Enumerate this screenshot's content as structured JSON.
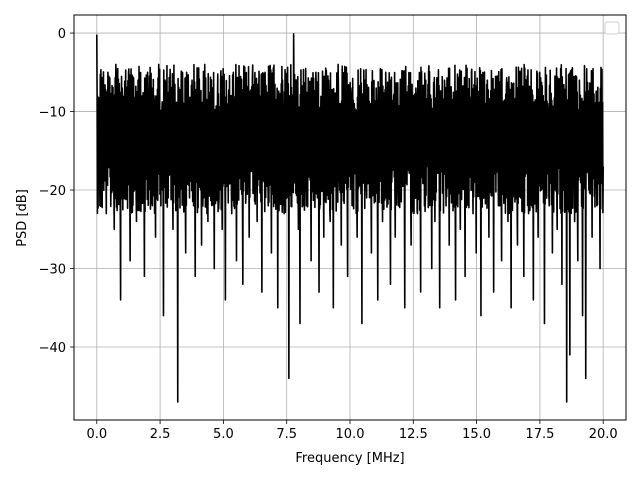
{
  "chart_data": {
    "type": "line",
    "title": "",
    "xlabel": "Frequency [MHz]",
    "ylabel": "PSD [dB]",
    "xlim": [
      -0.9,
      20.9
    ],
    "ylim": [
      -49.3,
      2.3
    ],
    "x_ticks": [
      0.0,
      2.5,
      5.0,
      7.5,
      10.0,
      12.5,
      15.0,
      17.5,
      20.0
    ],
    "x_tick_labels": [
      "0.0",
      "2.5",
      "5.0",
      "7.5",
      "10.0",
      "12.5",
      "15.0",
      "17.5",
      "20.0"
    ],
    "y_ticks": [
      0,
      -10,
      -20,
      -30,
      -40
    ],
    "y_tick_labels": [
      "0",
      "−10",
      "−20",
      "−30",
      "−40"
    ],
    "grid": true,
    "legend": "top-right (empty)",
    "series": [
      {
        "color": "#000000",
        "x_start": 0.0,
        "x_end": 20.0,
        "baseline_db": -13,
        "values": [
          -0.2,
          -14,
          -22,
          -6,
          -17,
          -11,
          -23,
          -5,
          -13,
          -19,
          -9,
          -25,
          -4,
          -15,
          -12,
          -34,
          -7,
          -21,
          -10,
          -16,
          -5,
          -29,
          -12,
          -8,
          -18,
          -24,
          -6,
          -13,
          -20,
          -9,
          -31,
          -11,
          -5,
          -17,
          -14,
          -22,
          -8,
          -26,
          -12,
          -4,
          -19,
          -10,
          -36,
          -6,
          -15,
          -21,
          -9,
          -13,
          -25,
          -7,
          -18,
          -47,
          -11,
          -14,
          -5,
          -20,
          -28,
          -9,
          -16,
          -12,
          -6,
          -22,
          -31,
          -10,
          -15,
          -8,
          -27,
          -13,
          -4,
          -19,
          -24,
          -11,
          -17,
          -7,
          -30,
          -14,
          -9,
          -21,
          -6,
          -25,
          -12,
          -34,
          -16,
          -8,
          -13,
          -23,
          -5,
          -18,
          -29,
          -10,
          -15,
          -7,
          -32,
          -12,
          -20,
          -9,
          -26,
          -14,
          -6,
          -17,
          -11,
          -24,
          -8,
          -19,
          -33,
          -13,
          -5,
          -16,
          -22,
          -10,
          -28,
          -7,
          -15,
          -12,
          -35,
          -9,
          -18,
          -6,
          -23,
          -14,
          -11,
          -44,
          -20,
          -8,
          -0.1,
          -16,
          -13,
          -25,
          -37,
          -10,
          -19,
          -7,
          -22,
          -15,
          -12,
          -29,
          -9,
          -17,
          -5,
          -21,
          -33,
          -11,
          -14,
          -26,
          -8,
          -18,
          -6,
          -24,
          -13,
          -35,
          -10,
          -16,
          -4,
          -20,
          -27,
          -12,
          -15,
          -9,
          -31,
          -17,
          -7,
          -22,
          -14,
          -11,
          -26,
          -8,
          -19,
          -37,
          -13,
          -6,
          -21,
          -15,
          -10,
          -28,
          -12,
          -18,
          -7,
          -34,
          -16,
          -9,
          -24,
          -14,
          -5,
          -20,
          -11,
          -32,
          -17,
          -8,
          -26,
          -13,
          -22,
          -10,
          -15,
          -6,
          -35,
          -19,
          -12,
          -9,
          -27,
          -16,
          -14,
          -7,
          -23,
          -11,
          -33,
          -18,
          -9,
          -21,
          -13,
          -5,
          -17,
          -30,
          -12,
          -24,
          -8,
          -15,
          -35,
          -10,
          -19,
          -6,
          -22,
          -14,
          -27,
          -11,
          -9,
          -18,
          -34,
          -13,
          -7,
          -25,
          -16,
          -12,
          -31,
          -8,
          -20,
          -15,
          -5,
          -23,
          -10,
          -28,
          -14,
          -17,
          -36,
          -9,
          -21,
          -12,
          -6,
          -26,
          -15,
          -11,
          -33,
          -18,
          -8,
          -22,
          -13,
          -29,
          -10,
          -16,
          -7,
          -24,
          -12,
          -35,
          -19,
          -9,
          -14,
          -27,
          -6,
          -21,
          -11,
          -31,
          -16,
          -8,
          -23,
          -13,
          -18,
          -34,
          -10,
          -15,
          -26,
          -5,
          -20,
          -12,
          -37,
          -17,
          -9,
          -22,
          -14,
          -28,
          -11,
          -7,
          -25,
          -16,
          -13,
          -32,
          -8,
          -19,
          -47,
          -10,
          -41,
          -15,
          -12,
          -24,
          -9,
          -29,
          -6,
          -18,
          -36,
          -13,
          -44,
          -11,
          -20,
          -7,
          -26,
          -15,
          -10,
          -22,
          -14,
          -30,
          -8,
          -17
        ]
      }
    ]
  }
}
